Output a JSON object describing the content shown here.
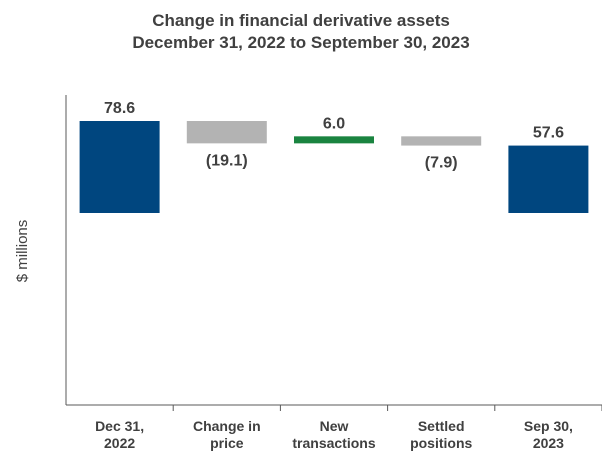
{
  "chart_data": {
    "type": "bar",
    "subtype": "waterfall",
    "title": "Change in financial derivative assets",
    "subtitle": "December 31, 2022 to September 30, 2023",
    "ylabel": "$ millions",
    "categories": [
      "Dec 31, 2022",
      "Change in price",
      "New transactions",
      "Settled positions",
      "Sep 30, 2023"
    ],
    "category_lines": [
      [
        "Dec 31,",
        "2022"
      ],
      [
        "Change in",
        "price"
      ],
      [
        "New",
        "transactions"
      ],
      [
        "Settled",
        "positions"
      ],
      [
        "Sep 30,",
        "2023"
      ]
    ],
    "values": [
      78.6,
      -19.1,
      6.0,
      -7.9,
      57.6
    ],
    "value_labels": [
      "78.6",
      "(19.1)",
      "6.0",
      "(7.9)",
      "57.6"
    ],
    "kinds": [
      "total",
      "delta",
      "delta",
      "delta",
      "total"
    ],
    "colors": {
      "total": "#00467F",
      "decrease": "#B3B3B3",
      "increase": "#1A8440",
      "text": "#404040",
      "axis": "#595959"
    },
    "ylim": [
      0,
      78.6
    ],
    "grid": false,
    "legend": "none"
  }
}
